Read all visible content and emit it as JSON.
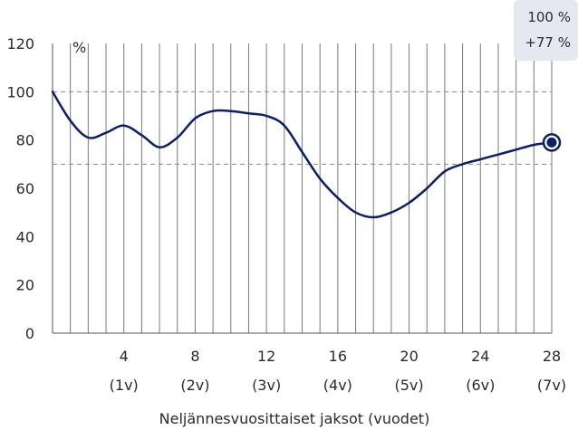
{
  "chart_data": {
    "type": "line",
    "ylabel": "%",
    "xlabel": "Neljännesvuosittaiset jaksot (vuodet)",
    "ylim": [
      0,
      120
    ],
    "xlim": [
      0,
      28
    ],
    "yticks": [
      0,
      20,
      40,
      60,
      80,
      100,
      120
    ],
    "xticks": [
      {
        "value": 4,
        "label": "4",
        "sublabel": "(1v)"
      },
      {
        "value": 8,
        "label": "8",
        "sublabel": "(2v)"
      },
      {
        "value": 12,
        "label": "12",
        "sublabel": "(3v)"
      },
      {
        "value": 16,
        "label": "16",
        "sublabel": "(4v)"
      },
      {
        "value": 20,
        "label": "20",
        "sublabel": "(5v)"
      },
      {
        "value": 24,
        "label": "24",
        "sublabel": "(6v)"
      },
      {
        "value": 28,
        "label": "28",
        "sublabel": "(7v)"
      }
    ],
    "reference_lines": [
      100,
      70
    ],
    "series": [
      {
        "color": "#0b1f6e",
        "x": [
          0,
          1,
          2,
          3,
          4,
          5,
          6,
          7,
          8,
          9,
          10,
          11,
          12,
          13,
          14,
          15,
          16,
          17,
          18,
          19,
          20,
          21,
          22,
          23,
          24,
          25,
          26,
          27,
          28
        ],
        "y": [
          100,
          88,
          81,
          83,
          86,
          82,
          77,
          81,
          89,
          92,
          92,
          91,
          90,
          86,
          75,
          64,
          56,
          50,
          48,
          50,
          54,
          60,
          67,
          70,
          72,
          74,
          76,
          78,
          79
        ]
      }
    ],
    "endpoint_marker": {
      "x": 28,
      "y": 79
    },
    "callout": {
      "line1": "100 %",
      "line2": "+77 %"
    }
  },
  "colors": {
    "line": "#0b1f6e",
    "grid": "#7a7a7a",
    "reference": "#8a8a8a",
    "callout_bg": "#e6e8f1"
  }
}
